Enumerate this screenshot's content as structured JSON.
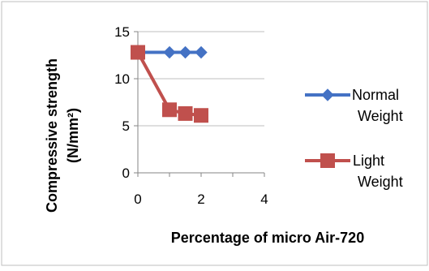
{
  "chart_data": {
    "type": "line",
    "title": "",
    "xlabel": "Percentage of micro Air-720",
    "ylabel_line1": "Compressive strength",
    "ylabel_line2": "(N/mm²)",
    "xlim": [
      0,
      4
    ],
    "ylim": [
      0,
      15
    ],
    "x_ticks": [
      0,
      2,
      4
    ],
    "x_tick_labels": [
      "0",
      "2",
      "4"
    ],
    "y_ticks": [
      0,
      5,
      10,
      15
    ],
    "y_tick_labels": [
      "0",
      "5",
      "10",
      "15"
    ],
    "grid": "horizontal",
    "legend_position": "right",
    "series": [
      {
        "name_line1": "Normal",
        "name_line2": "Weight",
        "marker": "diamond",
        "color": "#4472C4",
        "x": [
          0,
          1,
          1.5,
          2
        ],
        "y": [
          12.8,
          12.8,
          12.8,
          12.8
        ]
      },
      {
        "name_line1": "Light",
        "name_line2": "Weight",
        "marker": "square",
        "color": "#C0504D",
        "x": [
          0,
          1,
          1.5,
          2
        ],
        "y": [
          12.8,
          6.7,
          6.3,
          6.1
        ]
      }
    ]
  }
}
